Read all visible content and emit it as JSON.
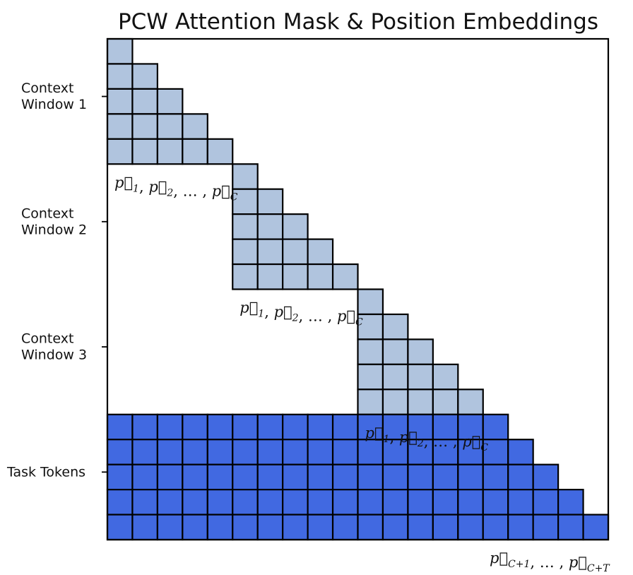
{
  "title": "PCW Attention Mask & Position Embeddings",
  "grid_size": 20,
  "colors": {
    "context_fill": "#b0c4de",
    "task_fill": "#4169e1",
    "border": "#000000"
  },
  "windows": [
    {
      "label_lines": [
        "Context",
        "Window 1"
      ],
      "start": 0,
      "size": 5,
      "positions": "p⃗1, p⃗2, … , p⃗C"
    },
    {
      "label_lines": [
        "Context",
        "Window 2"
      ],
      "start": 5,
      "size": 5,
      "positions": "p⃗1, p⃗2, … , p⃗C"
    },
    {
      "label_lines": [
        "Context",
        "Window 3"
      ],
      "start": 10,
      "size": 5,
      "positions": "p⃗1, p⃗2, … , p⃗C"
    }
  ],
  "task": {
    "label": "Task Tokens",
    "start": 15,
    "size": 5,
    "positions": "p⃗C+1, … , p⃗C+T"
  }
}
